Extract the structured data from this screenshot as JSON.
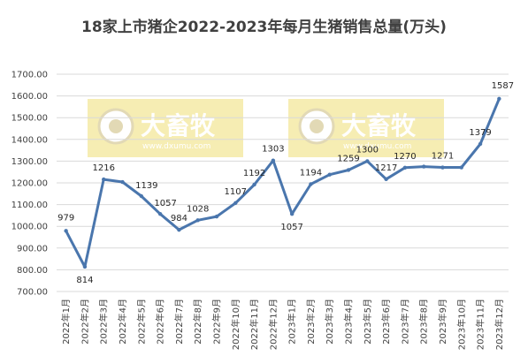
{
  "watermark": {
    "brand": "大畜牧",
    "domain": "www.dxumu.com",
    "box_color": "#f5eaa6",
    "text_color": "#d9cfa0"
  },
  "chart_data": {
    "type": "line",
    "title": "18家上市猪企2022-2023年每月生猪销售总量(万头)",
    "xlabel": "",
    "ylabel": "",
    "ylim": [
      700,
      1700
    ],
    "y_ticks": [
      "700.00",
      "800.00",
      "900.00",
      "1000.00",
      "1100.00",
      "1200.00",
      "1300.00",
      "1400.00",
      "1500.00",
      "1600.00",
      "1700.00"
    ],
    "grid": true,
    "legend": "none",
    "line_color": "#4a76ad",
    "categories": [
      "2022年1月",
      "2022年2月",
      "2022年3月",
      "2022年4月",
      "2022年5月",
      "2022年6月",
      "2022年7月",
      "2022年8月",
      "2022年9月",
      "2022年10月",
      "2022年11月",
      "2022年12月",
      "2023年1月",
      "2023年2月",
      "2023年3月",
      "2023年4月",
      "2023年5月",
      "2023年6月",
      "2023年7月",
      "2023年8月",
      "2023年9月",
      "2023年10月",
      "2023年11月",
      "2023年12月"
    ],
    "values": [
      979,
      814,
      1216,
      1204,
      1139,
      1057,
      984,
      1028,
      1045,
      1107,
      1192,
      1303,
      1057,
      1194,
      1238,
      1259,
      1300,
      1217,
      1270,
      1275,
      1271,
      1271,
      1379,
      1587
    ],
    "data_labels": [
      "979",
      "814",
      "1216",
      "",
      "1139",
      "1057",
      "984",
      "1028",
      "",
      "1107",
      "1192",
      "1303",
      "1057",
      "1194",
      "",
      "1259",
      "1300",
      "1217",
      "1270",
      "",
      "1271",
      "",
      "1379",
      "1587"
    ]
  }
}
